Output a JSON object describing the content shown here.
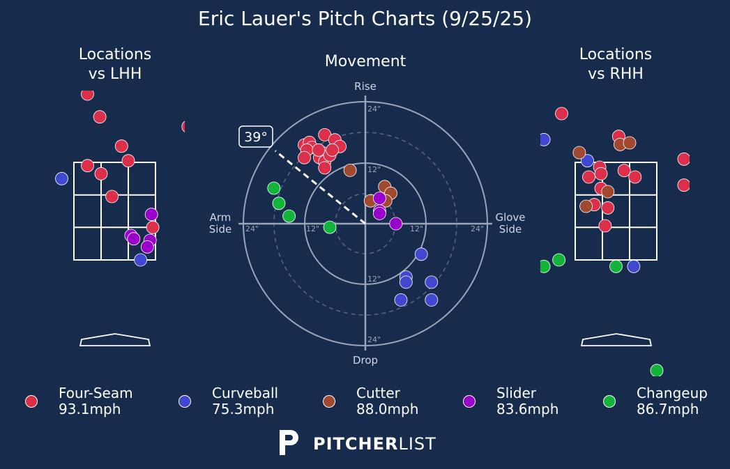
{
  "title": "Eric Lauer's Pitch Charts (9/25/25)",
  "panels": {
    "lhh": {
      "title_line1": "Locations",
      "title_line2": "vs LHH"
    },
    "movement": {
      "title": "Movement"
    },
    "rhh": {
      "title_line1": "Locations",
      "title_line2": "vs RHH"
    }
  },
  "movement_labels": {
    "rise": "Rise",
    "drop": "Drop",
    "arm_line1": "Arm",
    "arm_line2": "Side",
    "glove_line1": "Glove",
    "glove_line2": "Side",
    "ring_12": "12\"",
    "ring_24": "24\""
  },
  "arm_angle_label": "39°",
  "colors": {
    "background": "#172b4d",
    "Four-Seam": "#dc2f4a",
    "Curveball": "#4047d1",
    "Cutter": "#a0492f",
    "Slider": "#9900cc",
    "Changeup": "#12b53a"
  },
  "legend": [
    {
      "pitch": "Four-Seam",
      "speed": "93.1mph"
    },
    {
      "pitch": "Curveball",
      "speed": "75.3mph"
    },
    {
      "pitch": "Cutter",
      "speed": "88.0mph"
    },
    {
      "pitch": "Slider",
      "speed": "83.6mph"
    },
    {
      "pitch": "Changeup",
      "speed": "86.7mph"
    }
  ],
  "brand": {
    "bold": "PITCHER",
    "light": "LIST"
  },
  "chart_data": [
    {
      "type": "scatter",
      "title": "Locations vs LHH",
      "units": "zone units: x 0..3 left to right across the 3x3 zone, y 0..3 bottom to top",
      "series": [
        {
          "name": "Four-Seam",
          "points": [
            [
              0.5,
              5.1
            ],
            [
              0.95,
              4.4
            ],
            [
              1.75,
              3.5
            ],
            [
              2.0,
              3.05
            ],
            [
              0.5,
              2.9
            ],
            [
              1.0,
              2.65
            ],
            [
              1.4,
              1.95
            ],
            [
              4.2,
              4.1
            ],
            [
              2.9,
              1.0
            ]
          ]
        },
        {
          "name": "Curveball",
          "points": [
            [
              -0.45,
              2.5
            ],
            [
              2.45,
              0.0
            ]
          ]
        },
        {
          "name": "Cutter",
          "points": []
        },
        {
          "name": "Slider",
          "points": [
            [
              2.85,
              1.4
            ],
            [
              2.1,
              0.75
            ],
            [
              2.8,
              0.6
            ],
            [
              2.2,
              0.65
            ],
            [
              2.7,
              0.4
            ]
          ]
        },
        {
          "name": "Changeup",
          "points": []
        }
      ]
    },
    {
      "type": "scatter",
      "title": "Movement",
      "units": "inches; x positive = glove side, y positive = rise",
      "range": [
        -24,
        24
      ],
      "arm_angle_deg": 39,
      "series": [
        {
          "name": "Four-Seam",
          "points": [
            [
              -12.0,
              15.5
            ],
            [
              -11.0,
              16.0
            ],
            [
              -10.5,
              15.0
            ],
            [
              -8.0,
              17.5
            ],
            [
              -6.0,
              16.5
            ],
            [
              -5.0,
              15.2
            ],
            [
              -8.5,
              14.0
            ],
            [
              -9.0,
              13.0
            ],
            [
              -11.5,
              14.5
            ],
            [
              -12.0,
              13.0
            ],
            [
              -8.0,
              12.2
            ],
            [
              -8.0,
              11.0
            ],
            [
              -7.0,
              13.5
            ],
            [
              -9.2,
              14.5
            ],
            [
              -6.5,
              14.5
            ]
          ]
        },
        {
          "name": "Curveball",
          "points": [
            [
              11.0,
              -6.0
            ],
            [
              8.0,
              -10.5
            ],
            [
              8.0,
              -11.5
            ],
            [
              13.0,
              -11.5
            ],
            [
              7.0,
              -15.0
            ],
            [
              13.0,
              -15.0
            ]
          ]
        },
        {
          "name": "Cutter",
          "points": [
            [
              -3.0,
              10.5
            ],
            [
              3.8,
              7.3
            ],
            [
              5.0,
              6.0
            ],
            [
              1.0,
              4.5
            ],
            [
              4.0,
              4.5
            ]
          ]
        },
        {
          "name": "Slider",
          "points": [
            [
              2.8,
              5.0
            ],
            [
              2.8,
              2.5
            ],
            [
              2.8,
              2.0
            ],
            [
              6.0,
              0.0
            ]
          ]
        },
        {
          "name": "Changeup",
          "points": [
            [
              -18.0,
              7.0
            ],
            [
              -17.0,
              4.0
            ],
            [
              -15.0,
              1.5
            ],
            [
              -7.0,
              -0.7
            ]
          ]
        }
      ]
    },
    {
      "type": "scatter",
      "title": "Locations vs RHH",
      "units": "zone units: x 0..3 left to right across the 3x3 zone, y 0..3 bottom to top",
      "series": [
        {
          "name": "Four-Seam",
          "points": [
            [
              2.5,
              5.8
            ],
            [
              -0.5,
              4.5
            ],
            [
              1.6,
              3.8
            ],
            [
              0.9,
              2.85
            ],
            [
              0.95,
              2.65
            ],
            [
              0.5,
              2.55
            ],
            [
              0.95,
              2.2
            ],
            [
              1.8,
              2.75
            ],
            [
              2.2,
              2.55
            ],
            [
              0.7,
              1.7
            ],
            [
              1.2,
              1.6
            ],
            [
              1.1,
              1.05
            ],
            [
              4.0,
              3.1
            ],
            [
              4.0,
              2.3
            ]
          ]
        },
        {
          "name": "Curveball",
          "points": [
            [
              0.45,
              3.05
            ],
            [
              -1.15,
              3.7
            ],
            [
              2.15,
              -0.2
            ]
          ]
        },
        {
          "name": "Cutter",
          "points": [
            [
              1.65,
              3.55
            ],
            [
              2.0,
              3.6
            ],
            [
              0.15,
              3.3
            ],
            [
              1.2,
              2.1
            ],
            [
              0.4,
              1.65
            ]
          ]
        },
        {
          "name": "Slider",
          "points": []
        },
        {
          "name": "Changeup",
          "points": [
            [
              -0.6,
              0.0
            ],
            [
              -1.15,
              -0.2
            ],
            [
              1.5,
              -0.2
            ],
            [
              3.0,
              -3.4
            ]
          ]
        }
      ]
    }
  ]
}
